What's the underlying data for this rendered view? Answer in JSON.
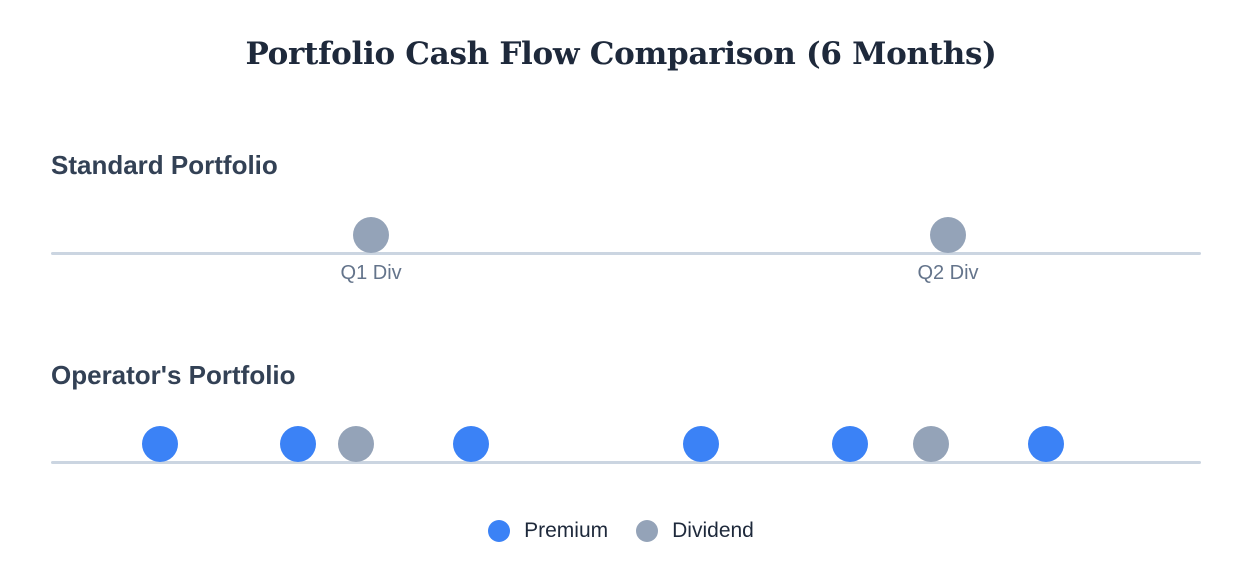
{
  "chart_data": {
    "type": "scatter",
    "title": "Portfolio Cash Flow Comparison (6 Months)",
    "x_unit": "months",
    "xlim": [
      0,
      6
    ],
    "legend_placement": "bottom-center",
    "series_styles": {
      "premium": {
        "name": "Premium",
        "color": "#3b82f6"
      },
      "dividend": {
        "name": "Dividend",
        "color": "#94a3b8"
      }
    },
    "rows": [
      {
        "label": "Standard Portfolio",
        "events": [
          {
            "x": 1.67,
            "type": "dividend",
            "label": "Q1 Div"
          },
          {
            "x": 4.68,
            "type": "dividend",
            "label": "Q2 Div"
          }
        ]
      },
      {
        "label": "Operator's Portfolio",
        "events": [
          {
            "x": 0.57,
            "type": "premium"
          },
          {
            "x": 1.29,
            "type": "premium"
          },
          {
            "x": 1.59,
            "type": "dividend"
          },
          {
            "x": 2.19,
            "type": "premium"
          },
          {
            "x": 3.39,
            "type": "premium"
          },
          {
            "x": 4.17,
            "type": "premium"
          },
          {
            "x": 4.59,
            "type": "dividend"
          },
          {
            "x": 5.19,
            "type": "premium"
          }
        ]
      }
    ]
  }
}
